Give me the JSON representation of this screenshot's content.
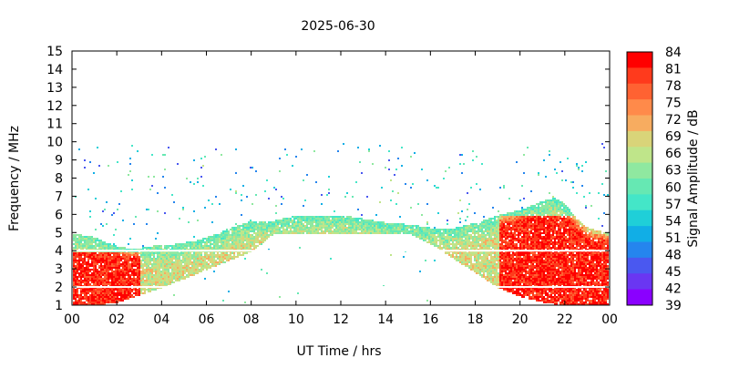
{
  "chart_data": {
    "type": "heatmap",
    "title": "2025-06-30",
    "xlabel": "UT Time / hrs",
    "ylabel": "Frequency / MHz",
    "colorbar_label": "Signal Amplitude / dB",
    "xlim": [
      0,
      24
    ],
    "ylim": [
      1,
      15
    ],
    "x_ticks": [
      "00",
      "02",
      "04",
      "06",
      "08",
      "10",
      "12",
      "14",
      "16",
      "18",
      "20",
      "22",
      "00"
    ],
    "y_ticks": [
      1,
      2,
      3,
      4,
      5,
      6,
      7,
      8,
      9,
      10,
      11,
      12,
      13,
      14,
      15
    ],
    "colorbar_ticks": [
      84,
      81,
      78,
      75,
      72,
      69,
      66,
      63,
      60,
      57,
      54,
      51,
      48,
      45,
      42,
      39
    ],
    "colorbar_colors": [
      "#ff0000",
      "#ff3a1c",
      "#ff6232",
      "#ff8a4a",
      "#f7ac60",
      "#d9d479",
      "#bfe58a",
      "#8fe8a0",
      "#66e8b3",
      "#44e6c8",
      "#1fcfd8",
      "#11aee6",
      "#2585ee",
      "#4a58f0",
      "#6a36f2",
      "#8a00ff"
    ],
    "grid": false,
    "upper_frequency_envelope_MHz": [
      [
        0.0,
        5.0
      ],
      [
        0.5,
        4.9
      ],
      [
        1.0,
        4.8
      ],
      [
        1.5,
        4.5
      ],
      [
        2.0,
        4.3
      ],
      [
        2.5,
        4.2
      ],
      [
        3.0,
        4.2
      ],
      [
        3.5,
        4.3
      ],
      [
        4.0,
        4.4
      ],
      [
        4.5,
        4.4
      ],
      [
        5.0,
        4.5
      ],
      [
        5.5,
        4.6
      ],
      [
        6.0,
        4.8
      ],
      [
        6.5,
        5.0
      ],
      [
        7.0,
        5.3
      ],
      [
        7.5,
        5.5
      ],
      [
        8.0,
        5.7
      ],
      [
        8.5,
        5.7
      ],
      [
        9.0,
        5.7
      ],
      [
        10.0,
        6.0
      ],
      [
        11.0,
        6.0
      ],
      [
        12.0,
        6.0
      ],
      [
        13.0,
        5.8
      ],
      [
        14.0,
        5.6
      ],
      [
        15.0,
        5.5
      ],
      [
        16.0,
        5.3
      ],
      [
        17.0,
        5.3
      ],
      [
        18.0,
        5.6
      ],
      [
        19.0,
        6.0
      ],
      [
        20.0,
        6.3
      ],
      [
        21.0,
        6.8
      ],
      [
        21.5,
        7.0
      ],
      [
        22.0,
        6.6
      ],
      [
        22.5,
        5.8
      ],
      [
        23.0,
        5.3
      ],
      [
        24.0,
        5.0
      ]
    ],
    "lower_frequency_envelope_MHz": [
      [
        0.0,
        1.0
      ],
      [
        1.0,
        1.0
      ],
      [
        2.0,
        1.2
      ],
      [
        3.0,
        1.6
      ],
      [
        4.0,
        2.0
      ],
      [
        5.0,
        2.5
      ],
      [
        6.0,
        3.0
      ],
      [
        7.0,
        3.5
      ],
      [
        8.0,
        4.0
      ],
      [
        9.0,
        5.0
      ],
      [
        15.0,
        5.0
      ],
      [
        16.0,
        4.4
      ],
      [
        17.0,
        3.6
      ],
      [
        18.0,
        2.8
      ],
      [
        19.0,
        2.0
      ],
      [
        20.0,
        1.5
      ],
      [
        21.0,
        1.2
      ],
      [
        22.0,
        1.0
      ],
      [
        24.0,
        1.0
      ]
    ],
    "peak_amplitude_regions": [
      {
        "x_from": 0.0,
        "x_to": 3.0,
        "f_from": 1.0,
        "f_to": 4.0,
        "amplitude_dB": 81
      },
      {
        "x_from": 19.0,
        "x_to": 24.0,
        "f_from": 1.0,
        "f_to": 6.0,
        "amplitude_dB": 81
      }
    ]
  }
}
